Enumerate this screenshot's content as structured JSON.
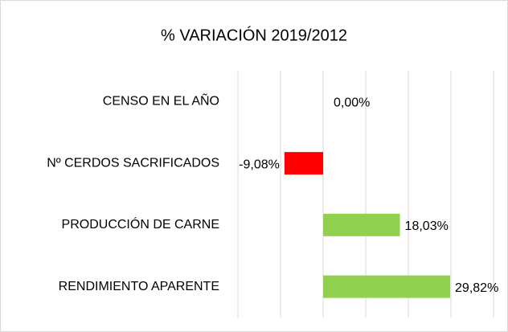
{
  "chart_data": {
    "type": "hbar",
    "title": "% VARIACIÓN 2019/2012",
    "categories": [
      "CENSO EN EL AÑO",
      "Nº CERDOS SACRIFICADOS",
      "PRODUCCIÓN DE CARNE",
      "RENDIMIENTO APARENTE"
    ],
    "values": [
      0,
      -9.08,
      18.03,
      29.82
    ],
    "value_labels": [
      "0,00%",
      "-9,08%",
      "18,03%",
      "29,82%"
    ],
    "colors": [
      "#92d050",
      "#ff0000",
      "#92d050",
      "#92d050"
    ],
    "xlim": [
      -20,
      40
    ],
    "xticks": [
      -20,
      -10,
      0,
      10,
      20,
      30,
      40
    ],
    "grid": true
  }
}
